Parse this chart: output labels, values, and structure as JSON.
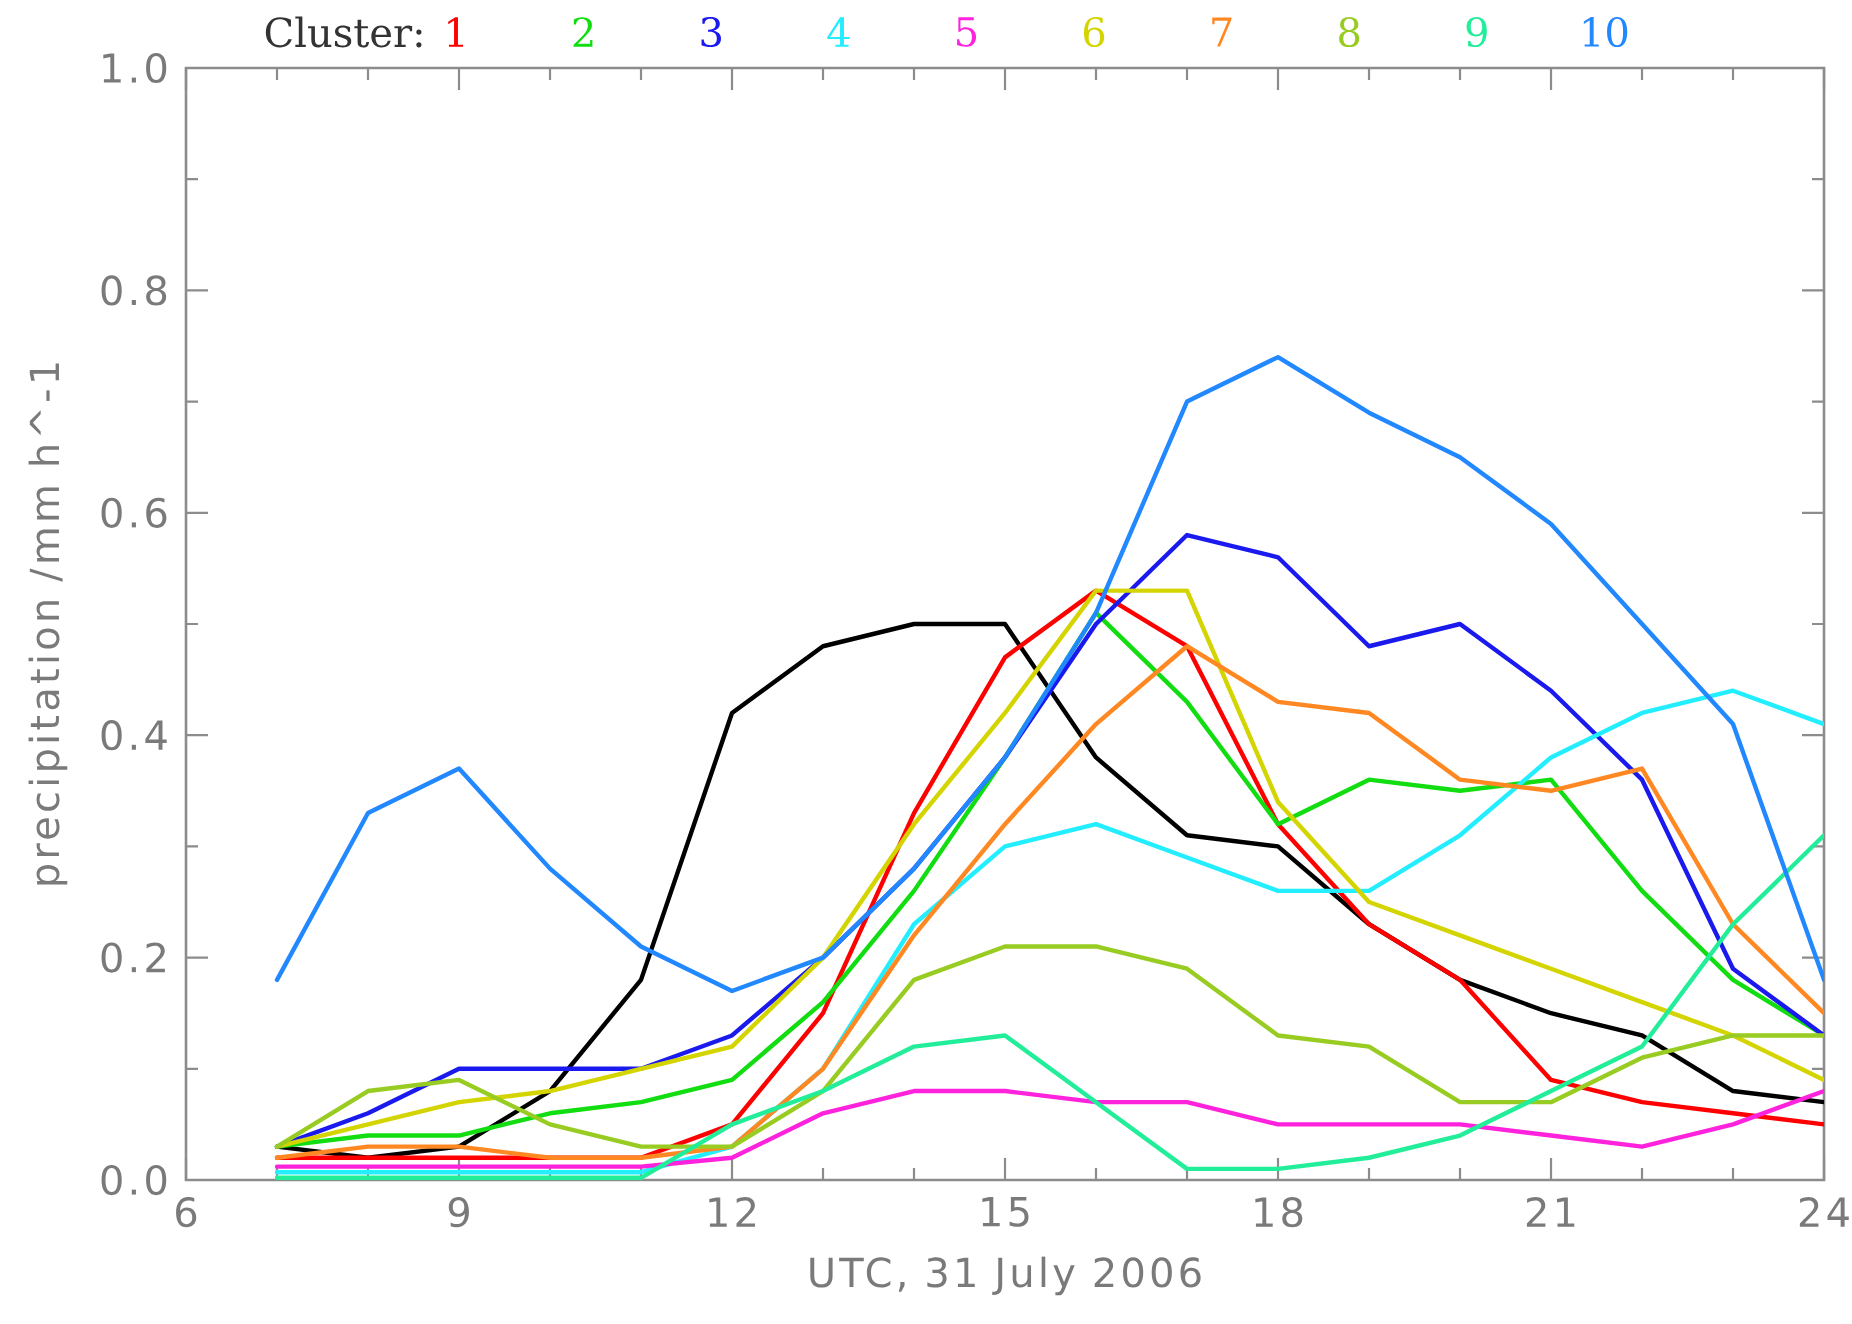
{
  "chart_data": {
    "type": "line",
    "xlabel": "UTC, 31 July 2006",
    "ylabel": "precipitation /mm h^-1",
    "legend_title": "Cluster:",
    "legend": "top",
    "x": [
      7,
      8,
      9,
      10,
      11,
      12,
      13,
      14,
      15,
      16,
      17,
      18,
      19,
      20,
      21,
      22,
      23,
      24
    ],
    "xlim": [
      6,
      24
    ],
    "xticks": [
      6,
      {
        "value": 7,
        "label": null
      },
      {
        "value": 8,
        "label": null
      },
      9,
      {
        "value": 10,
        "label": null
      },
      {
        "value": 11,
        "label": null
      },
      12,
      {
        "value": 13,
        "label": null
      },
      {
        "value": 14,
        "label": null
      },
      15,
      {
        "value": 16,
        "label": null
      },
      {
        "value": 17,
        "label": null
      },
      18,
      {
        "value": 19,
        "label": null
      },
      {
        "value": 20,
        "label": null
      },
      21,
      {
        "value": 22,
        "label": null
      },
      {
        "value": 23,
        "label": null
      },
      24
    ],
    "ylim": [
      0,
      1
    ],
    "yticks": [
      {
        "value": 0,
        "label": "0.0"
      },
      {
        "value": 0.1,
        "label": null
      },
      0.2,
      {
        "value": 0.3,
        "label": null
      },
      0.4,
      {
        "value": 0.5,
        "label": null
      },
      0.6,
      {
        "value": 0.7,
        "label": null
      },
      0.8,
      {
        "value": 0.9,
        "label": null
      },
      {
        "value": 1,
        "label": "1.0"
      }
    ],
    "series": [
      {
        "color": "#000000",
        "values": [
          0.03,
          0.02,
          0.03,
          0.08,
          0.18,
          0.42,
          0.48,
          0.5,
          0.5,
          0.38,
          0.31,
          0.3,
          0.23,
          0.18,
          0.15,
          0.13,
          0.08,
          0.07
        ]
      },
      {
        "name": "1",
        "color": "#ff0000",
        "values": [
          0.02,
          0.02,
          0.02,
          0.02,
          0.02,
          0.05,
          0.15,
          0.33,
          0.47,
          0.53,
          0.48,
          0.32,
          0.23,
          0.18,
          0.09,
          0.07,
          0.06,
          0.05
        ]
      },
      {
        "name": "2",
        "color": "#11dd11",
        "values": [
          0.03,
          0.04,
          0.04,
          0.06,
          0.07,
          0.09,
          0.16,
          0.26,
          0.38,
          0.51,
          0.43,
          0.32,
          0.36,
          0.35,
          0.36,
          0.26,
          0.18,
          0.13
        ]
      },
      {
        "name": "3",
        "color": "#1a1aee",
        "values": [
          0.03,
          0.06,
          0.1,
          0.1,
          0.1,
          0.13,
          0.2,
          0.28,
          0.38,
          0.5,
          0.58,
          0.56,
          0.48,
          0.5,
          0.44,
          0.36,
          0.19,
          0.13
        ]
      },
      {
        "name": "4",
        "color": "#22eeff",
        "values": [
          0.007,
          0.007,
          0.007,
          0.007,
          0.007,
          0.03,
          0.1,
          0.23,
          0.3,
          0.32,
          0.29,
          0.26,
          0.26,
          0.31,
          0.38,
          0.42,
          0.44,
          0.41
        ]
      },
      {
        "name": "5",
        "color": "#ff22dd",
        "values": [
          0.012,
          0.012,
          0.012,
          0.012,
          0.012,
          0.02,
          0.06,
          0.08,
          0.08,
          0.07,
          0.07,
          0.05,
          0.05,
          0.05,
          0.04,
          0.03,
          0.05,
          0.08
        ]
      },
      {
        "name": "6",
        "color": "#d4d400",
        "values": [
          0.03,
          0.05,
          0.07,
          0.08,
          0.1,
          0.12,
          0.2,
          0.32,
          0.42,
          0.53,
          0.53,
          0.34,
          0.25,
          0.22,
          0.19,
          0.16,
          0.13,
          0.09
        ]
      },
      {
        "name": "7",
        "color": "#ff8822",
        "values": [
          0.02,
          0.03,
          0.03,
          0.02,
          0.02,
          0.03,
          0.1,
          0.22,
          0.32,
          0.41,
          0.48,
          0.43,
          0.42,
          0.36,
          0.35,
          0.37,
          0.23,
          0.15
        ]
      },
      {
        "name": "8",
        "color": "#99cc22",
        "values": [
          0.03,
          0.08,
          0.09,
          0.05,
          0.03,
          0.03,
          0.08,
          0.18,
          0.21,
          0.21,
          0.19,
          0.13,
          0.12,
          0.07,
          0.07,
          0.11,
          0.13,
          0.13
        ]
      },
      {
        "name": "9",
        "color": "#22ee99",
        "values": [
          0.002,
          0.002,
          0.002,
          0.002,
          0.002,
          0.05,
          0.08,
          0.12,
          0.13,
          0.07,
          0.01,
          0.01,
          0.02,
          0.04,
          0.08,
          0.12,
          0.23,
          0.31
        ]
      },
      {
        "name": "10",
        "color": "#2288ff",
        "values": [
          0.18,
          0.33,
          0.37,
          0.28,
          0.21,
          0.17,
          0.2,
          0.28,
          0.38,
          0.51,
          0.7,
          0.74,
          0.69,
          0.65,
          0.59,
          0.5,
          0.41,
          0.18
        ]
      }
    ]
  }
}
